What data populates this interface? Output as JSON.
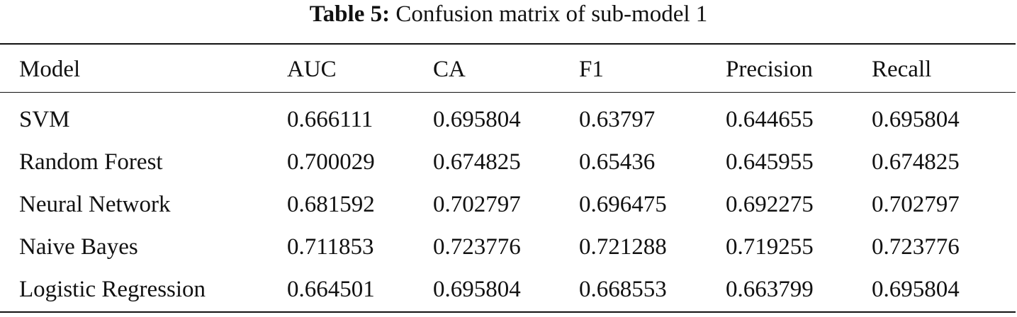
{
  "caption": {
    "label": "Table 5:",
    "text": "Confusion matrix of sub-model 1"
  },
  "table": {
    "headers": [
      "Model",
      "AUC",
      "CA",
      "F1",
      "Precision",
      "Recall"
    ],
    "rows": [
      [
        "SVM",
        "0.666111",
        "0.695804",
        "0.63797",
        "0.644655",
        "0.695804"
      ],
      [
        "Random Forest",
        "0.700029",
        "0.674825",
        "0.65436",
        "0.645955",
        "0.674825"
      ],
      [
        "Neural Network",
        "0.681592",
        "0.702797",
        "0.696475",
        "0.692275",
        "0.702797"
      ],
      [
        "Naive Bayes",
        "0.711853",
        "0.723776",
        "0.721288",
        "0.719255",
        "0.723776"
      ],
      [
        "Logistic Regression",
        "0.664501",
        "0.695804",
        "0.668553",
        "0.663799",
        "0.695804"
      ]
    ]
  }
}
